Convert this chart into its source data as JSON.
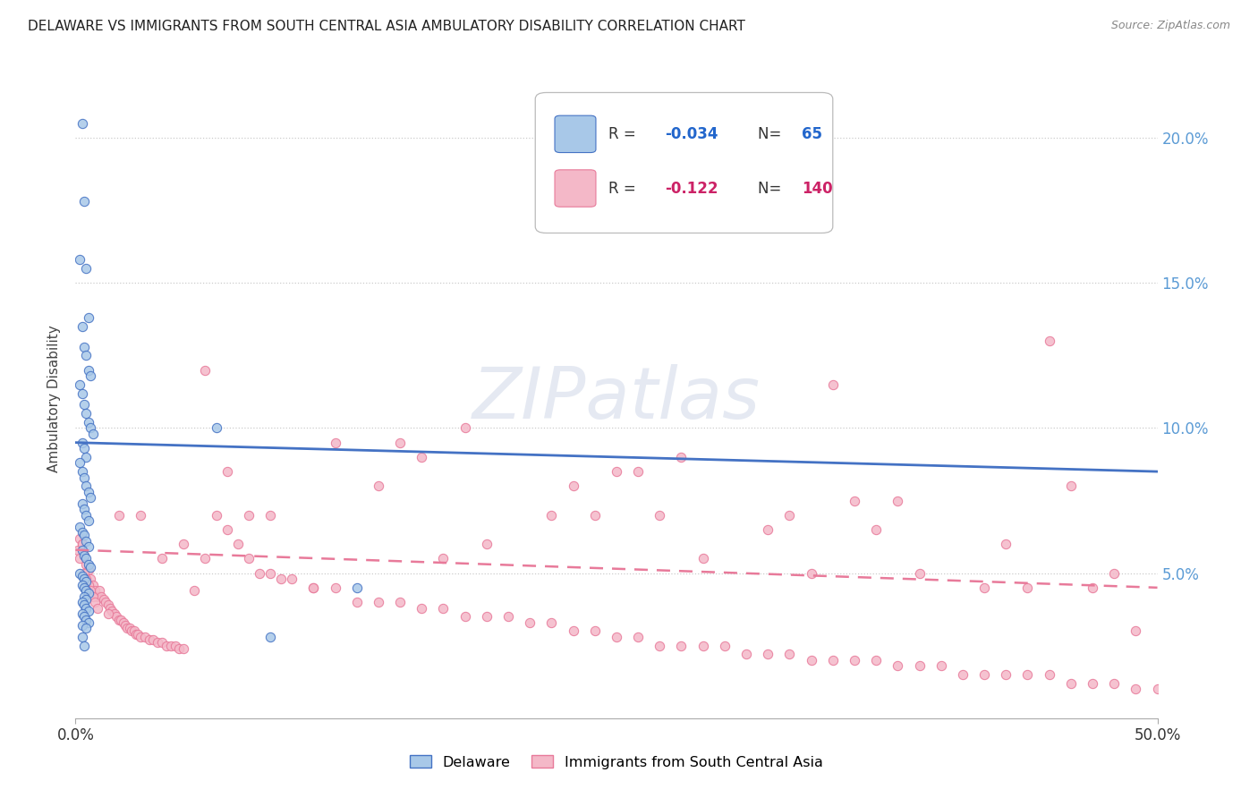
{
  "title": "DELAWARE VS IMMIGRANTS FROM SOUTH CENTRAL ASIA AMBULATORY DISABILITY CORRELATION CHART",
  "source": "Source: ZipAtlas.com",
  "ylabel": "Ambulatory Disability",
  "watermark": "ZIPatlas",
  "legend_label1": "Delaware",
  "legend_label2": "Immigrants from South Central Asia",
  "R1": -0.034,
  "N1": 65,
  "R2": -0.122,
  "N2": 140,
  "color_blue": "#a8c8e8",
  "color_pink": "#f4b8c8",
  "color_blue_line": "#4472c4",
  "color_pink_line": "#e87a9a",
  "xlim": [
    0.0,
    0.5
  ],
  "ylim": [
    0.0,
    0.22
  ],
  "yticks": [
    0.05,
    0.1,
    0.15,
    0.2
  ],
  "ytick_labels": [
    "5.0%",
    "10.0%",
    "15.0%",
    "20.0%"
  ],
  "blue_trend_start": 0.095,
  "blue_trend_end": 0.085,
  "pink_trend_start": 0.058,
  "pink_trend_end": 0.045,
  "delaware_x": [
    0.003,
    0.004,
    0.002,
    0.005,
    0.006,
    0.003,
    0.004,
    0.005,
    0.006,
    0.007,
    0.002,
    0.003,
    0.004,
    0.005,
    0.006,
    0.007,
    0.008,
    0.003,
    0.004,
    0.005,
    0.002,
    0.003,
    0.004,
    0.005,
    0.006,
    0.007,
    0.003,
    0.004,
    0.005,
    0.006,
    0.002,
    0.003,
    0.004,
    0.005,
    0.006,
    0.003,
    0.004,
    0.005,
    0.006,
    0.007,
    0.002,
    0.003,
    0.004,
    0.005,
    0.003,
    0.004,
    0.005,
    0.006,
    0.004,
    0.005,
    0.003,
    0.004,
    0.005,
    0.006,
    0.003,
    0.004,
    0.005,
    0.006,
    0.003,
    0.005,
    0.003,
    0.004,
    0.065,
    0.09,
    0.13
  ],
  "delaware_y": [
    0.205,
    0.178,
    0.158,
    0.155,
    0.138,
    0.135,
    0.128,
    0.125,
    0.12,
    0.118,
    0.115,
    0.112,
    0.108,
    0.105,
    0.102,
    0.1,
    0.098,
    0.095,
    0.093,
    0.09,
    0.088,
    0.085,
    0.083,
    0.08,
    0.078,
    0.076,
    0.074,
    0.072,
    0.07,
    0.068,
    0.066,
    0.064,
    0.063,
    0.061,
    0.059,
    0.058,
    0.056,
    0.055,
    0.053,
    0.052,
    0.05,
    0.049,
    0.048,
    0.047,
    0.046,
    0.045,
    0.044,
    0.043,
    0.042,
    0.041,
    0.04,
    0.039,
    0.038,
    0.037,
    0.036,
    0.035,
    0.034,
    0.033,
    0.032,
    0.031,
    0.028,
    0.025,
    0.1,
    0.028,
    0.045
  ],
  "immigrants_x": [
    0.001,
    0.002,
    0.003,
    0.004,
    0.005,
    0.006,
    0.007,
    0.008,
    0.009,
    0.01,
    0.011,
    0.012,
    0.013,
    0.014,
    0.015,
    0.016,
    0.017,
    0.018,
    0.019,
    0.02,
    0.021,
    0.022,
    0.023,
    0.024,
    0.025,
    0.026,
    0.027,
    0.028,
    0.029,
    0.03,
    0.032,
    0.034,
    0.036,
    0.038,
    0.04,
    0.042,
    0.044,
    0.046,
    0.048,
    0.05,
    0.055,
    0.06,
    0.065,
    0.07,
    0.075,
    0.08,
    0.085,
    0.09,
    0.095,
    0.1,
    0.11,
    0.12,
    0.13,
    0.14,
    0.15,
    0.16,
    0.17,
    0.18,
    0.19,
    0.2,
    0.21,
    0.22,
    0.23,
    0.24,
    0.25,
    0.26,
    0.27,
    0.28,
    0.29,
    0.3,
    0.31,
    0.32,
    0.33,
    0.34,
    0.35,
    0.36,
    0.37,
    0.38,
    0.39,
    0.4,
    0.41,
    0.42,
    0.43,
    0.44,
    0.45,
    0.46,
    0.47,
    0.48,
    0.49,
    0.5,
    0.15,
    0.25,
    0.35,
    0.45,
    0.06,
    0.16,
    0.26,
    0.36,
    0.46,
    0.07,
    0.17,
    0.27,
    0.37,
    0.47,
    0.08,
    0.18,
    0.28,
    0.38,
    0.48,
    0.09,
    0.19,
    0.29,
    0.39,
    0.49,
    0.05,
    0.12,
    0.22,
    0.32,
    0.42,
    0.02,
    0.11,
    0.23,
    0.33,
    0.43,
    0.04,
    0.14,
    0.24,
    0.34,
    0.44,
    0.03,
    0.002,
    0.003,
    0.004,
    0.005,
    0.006,
    0.007,
    0.008,
    0.009,
    0.01,
    0.015
  ],
  "immigrants_y": [
    0.058,
    0.062,
    0.06,
    0.056,
    0.053,
    0.051,
    0.048,
    0.046,
    0.044,
    0.042,
    0.044,
    0.042,
    0.041,
    0.04,
    0.039,
    0.038,
    0.037,
    0.036,
    0.035,
    0.034,
    0.034,
    0.033,
    0.032,
    0.031,
    0.031,
    0.03,
    0.03,
    0.029,
    0.029,
    0.028,
    0.028,
    0.027,
    0.027,
    0.026,
    0.026,
    0.025,
    0.025,
    0.025,
    0.024,
    0.024,
    0.044,
    0.055,
    0.07,
    0.065,
    0.06,
    0.055,
    0.05,
    0.05,
    0.048,
    0.048,
    0.045,
    0.045,
    0.04,
    0.04,
    0.04,
    0.038,
    0.038,
    0.035,
    0.035,
    0.035,
    0.033,
    0.033,
    0.03,
    0.03,
    0.028,
    0.028,
    0.025,
    0.025,
    0.025,
    0.025,
    0.022,
    0.022,
    0.022,
    0.02,
    0.02,
    0.02,
    0.02,
    0.018,
    0.018,
    0.018,
    0.015,
    0.015,
    0.015,
    0.015,
    0.015,
    0.012,
    0.012,
    0.012,
    0.01,
    0.01,
    0.095,
    0.085,
    0.115,
    0.13,
    0.12,
    0.09,
    0.085,
    0.075,
    0.08,
    0.085,
    0.055,
    0.07,
    0.065,
    0.045,
    0.07,
    0.1,
    0.09,
    0.075,
    0.05,
    0.07,
    0.06,
    0.055,
    0.05,
    0.03,
    0.06,
    0.095,
    0.07,
    0.065,
    0.045,
    0.07,
    0.045,
    0.08,
    0.07,
    0.06,
    0.055,
    0.08,
    0.07,
    0.05,
    0.045,
    0.07,
    0.055,
    0.06,
    0.05,
    0.048,
    0.046,
    0.044,
    0.042,
    0.04,
    0.038,
    0.036
  ]
}
